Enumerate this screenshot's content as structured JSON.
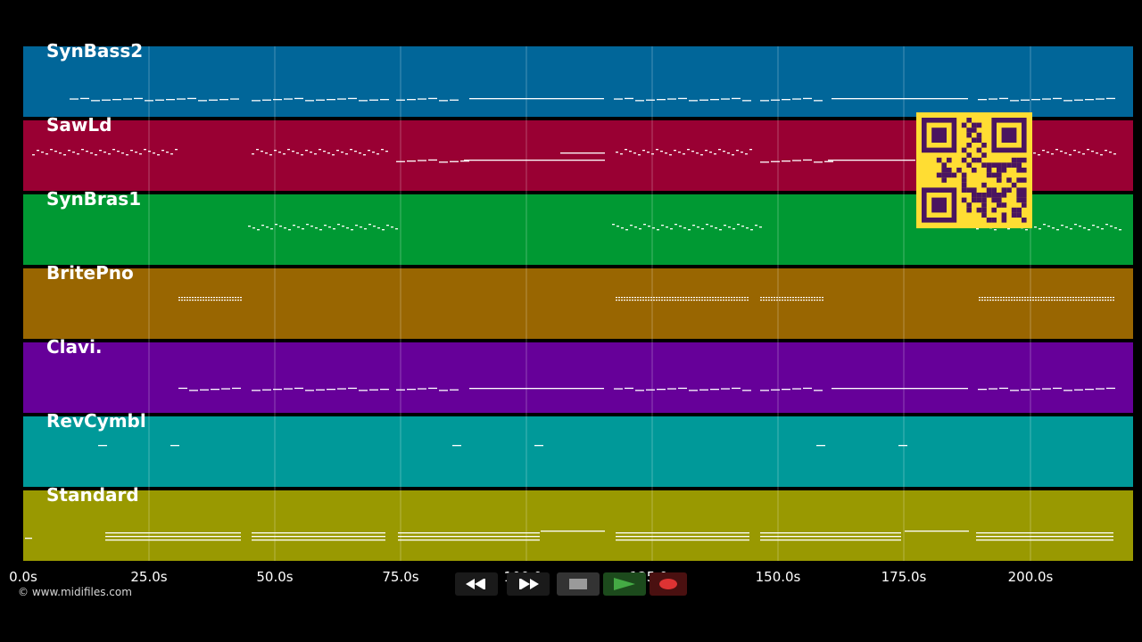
{
  "tracks": [
    {
      "name": "SynBass2",
      "color": "#016699"
    },
    {
      "name": "SawLd",
      "color": "#990033"
    },
    {
      "name": "SynBras1",
      "color": "#009933"
    },
    {
      "name": "BritePno",
      "color": "#996601"
    },
    {
      "name": "Clavi.",
      "color": "#660099"
    },
    {
      "name": "RevCymbl",
      "color": "#009999"
    },
    {
      "name": "Standard",
      "color": "#999901"
    }
  ],
  "timeline": {
    "ticks": [
      "0.0s",
      "25.0s",
      "50.0s",
      "75.0s",
      "100.0s",
      "125.0s",
      "150.0s",
      "175.0s",
      "200.0s"
    ]
  },
  "copyright": "© www.midifiles.com",
  "transport": {
    "buttons": [
      {
        "name": "rewind-button",
        "icon": "rewind-icon"
      },
      {
        "name": "fast-forward-button",
        "icon": "fast-forward-icon"
      },
      {
        "name": "stop-button",
        "icon": "stop-icon"
      },
      {
        "name": "play-button",
        "icon": "play-icon"
      },
      {
        "name": "record-button",
        "icon": "record-icon"
      }
    ]
  },
  "qr_code": {
    "icon": "qr-code-icon",
    "color": "#ffdd33"
  }
}
